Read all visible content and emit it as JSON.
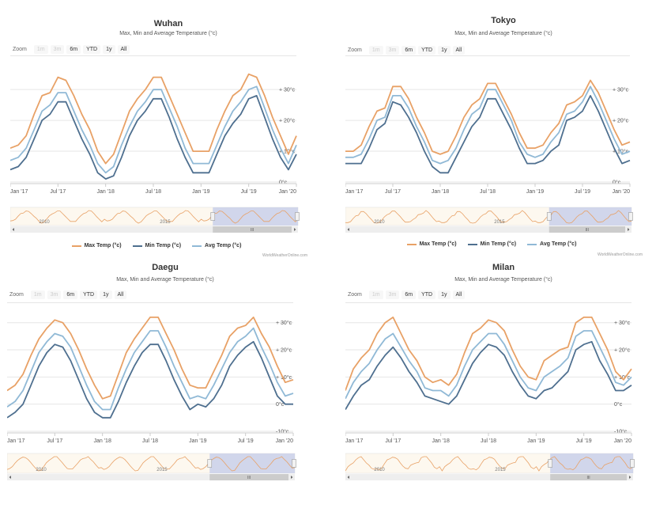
{
  "common": {
    "subtitle": "Max, Min and Average Temperature (°c)",
    "zoom": {
      "label": "Zoom",
      "buttons": [
        "1m",
        "3m",
        "6m",
        "YTD",
        "1y",
        "All"
      ],
      "disabled": [
        "1m",
        "3m"
      ]
    },
    "legend": [
      "Max Temp (°c)",
      "Min Temp (°c)",
      "Avg Temp (°c)"
    ],
    "credit": "WorldWeatherOnline.com",
    "x_ticks": [
      "Jan '17",
      "Jul '17",
      "Jan '18",
      "Jul '18",
      "Jan '19",
      "Jul '19",
      "Jan '20"
    ],
    "navigator_labels": [
      "2010",
      "2015"
    ],
    "scrollbar_grip": "III",
    "colors": {
      "max": "#e8a166",
      "min": "#4e6f8f",
      "avg": "#90b9d6",
      "grid": "#e6e6e6",
      "nav": "#c9d0ea"
    }
  },
  "chart_data": [
    {
      "type": "line",
      "title": "Wuhan",
      "x": [
        "2017-01",
        "2017-02",
        "2017-03",
        "2017-04",
        "2017-05",
        "2017-06",
        "2017-07",
        "2017-08",
        "2017-09",
        "2017-10",
        "2017-11",
        "2017-12",
        "2018-01",
        "2018-02",
        "2018-03",
        "2018-04",
        "2018-05",
        "2018-06",
        "2018-07",
        "2018-08",
        "2018-09",
        "2018-10",
        "2018-11",
        "2018-12",
        "2019-01",
        "2019-02",
        "2019-03",
        "2019-04",
        "2019-05",
        "2019-06",
        "2019-07",
        "2019-08",
        "2019-09",
        "2019-10",
        "2019-11",
        "2019-12",
        "2020-01"
      ],
      "series": [
        {
          "name": "Max Temp (°c)",
          "values": [
            11,
            12,
            15,
            22,
            28,
            29,
            34,
            33,
            28,
            22,
            17,
            10,
            6,
            9,
            16,
            23,
            27,
            30,
            34,
            34,
            28,
            22,
            16,
            10,
            10,
            10,
            17,
            23,
            28,
            30,
            35,
            34,
            28,
            21,
            15,
            9,
            15
          ]
        },
        {
          "name": "Min Temp (°c)",
          "values": [
            4,
            5,
            8,
            14,
            20,
            22,
            26,
            26,
            20,
            14,
            9,
            3,
            1,
            2,
            8,
            15,
            20,
            23,
            27,
            27,
            21,
            14,
            8,
            3,
            3,
            3,
            9,
            15,
            19,
            22,
            27,
            28,
            21,
            14,
            8,
            4,
            9
          ]
        },
        {
          "name": "Avg Temp (°c)",
          "values": [
            7,
            8,
            11,
            17,
            23,
            25,
            29,
            29,
            23,
            17,
            12,
            6,
            3,
            5,
            12,
            18,
            23,
            26,
            30,
            30,
            24,
            18,
            11,
            6,
            6,
            6,
            12,
            18,
            23,
            26,
            30,
            31,
            24,
            17,
            11,
            6,
            12
          ]
        }
      ],
      "y_ticks": [
        "+ 30°c",
        "+ 20°c",
        "+ 10°c",
        "0°c"
      ],
      "ylim": [
        0,
        38
      ]
    },
    {
      "type": "line",
      "title": "Tokyo",
      "x": [
        "2017-01",
        "2017-02",
        "2017-03",
        "2017-04",
        "2017-05",
        "2017-06",
        "2017-07",
        "2017-08",
        "2017-09",
        "2017-10",
        "2017-11",
        "2017-12",
        "2018-01",
        "2018-02",
        "2018-03",
        "2018-04",
        "2018-05",
        "2018-06",
        "2018-07",
        "2018-08",
        "2018-09",
        "2018-10",
        "2018-11",
        "2018-12",
        "2019-01",
        "2019-02",
        "2019-03",
        "2019-04",
        "2019-05",
        "2019-06",
        "2019-07",
        "2019-08",
        "2019-09",
        "2019-10",
        "2019-11",
        "2019-12",
        "2020-01"
      ],
      "series": [
        {
          "name": "Max Temp (°c)",
          "values": [
            10,
            10,
            12,
            18,
            23,
            24,
            31,
            31,
            27,
            21,
            16,
            10,
            9,
            10,
            15,
            21,
            25,
            27,
            32,
            32,
            27,
            22,
            16,
            11,
            11,
            12,
            16,
            19,
            25,
            26,
            28,
            33,
            29,
            23,
            17,
            12,
            13
          ]
        },
        {
          "name": "Min Temp (°c)",
          "values": [
            6,
            6,
            6,
            11,
            17,
            19,
            26,
            25,
            21,
            16,
            10,
            5,
            3,
            3,
            8,
            13,
            18,
            21,
            27,
            27,
            22,
            17,
            11,
            6,
            6,
            7,
            10,
            12,
            20,
            21,
            23,
            28,
            23,
            17,
            11,
            6,
            7
          ]
        },
        {
          "name": "Avg Temp (°c)",
          "values": [
            8,
            8,
            9,
            14,
            20,
            21,
            28,
            28,
            24,
            18,
            13,
            7,
            6,
            7,
            11,
            17,
            22,
            24,
            30,
            30,
            25,
            20,
            13,
            9,
            8,
            9,
            13,
            16,
            22,
            23,
            26,
            31,
            26,
            20,
            14,
            9,
            10
          ]
        }
      ],
      "y_ticks": [
        "+ 30°c",
        "+ 20°c",
        "+ 10°c",
        "0°c"
      ],
      "ylim": [
        0,
        38
      ]
    },
    {
      "type": "line",
      "title": "Daegu",
      "x": [
        "2017-01",
        "2017-02",
        "2017-03",
        "2017-04",
        "2017-05",
        "2017-06",
        "2017-07",
        "2017-08",
        "2017-09",
        "2017-10",
        "2017-11",
        "2017-12",
        "2018-01",
        "2018-02",
        "2018-03",
        "2018-04",
        "2018-05",
        "2018-06",
        "2018-07",
        "2018-08",
        "2018-09",
        "2018-10",
        "2018-11",
        "2018-12",
        "2019-01",
        "2019-02",
        "2019-03",
        "2019-04",
        "2019-05",
        "2019-06",
        "2019-07",
        "2019-08",
        "2019-09",
        "2019-10",
        "2019-11",
        "2019-12",
        "2020-01"
      ],
      "series": [
        {
          "name": "Max Temp (°c)",
          "values": [
            5,
            7,
            11,
            18,
            24,
            28,
            31,
            30,
            26,
            20,
            13,
            7,
            2,
            3,
            11,
            19,
            24,
            28,
            32,
            32,
            26,
            20,
            13,
            7,
            6,
            6,
            12,
            18,
            25,
            28,
            29,
            32,
            26,
            21,
            14,
            8,
            9
          ]
        },
        {
          "name": "Min Temp (°c)",
          "values": [
            -5,
            -3,
            0,
            7,
            14,
            19,
            22,
            21,
            16,
            9,
            2,
            -3,
            -5,
            -5,
            1,
            8,
            14,
            19,
            22,
            22,
            16,
            9,
            3,
            -2,
            0,
            -1,
            2,
            7,
            14,
            18,
            21,
            23,
            17,
            10,
            3,
            0,
            0
          ]
        },
        {
          "name": "Avg Temp (°c)",
          "values": [
            -1,
            1,
            5,
            12,
            19,
            23,
            26,
            25,
            21,
            14,
            7,
            1,
            -2,
            -2,
            6,
            13,
            19,
            23,
            27,
            27,
            21,
            14,
            8,
            2,
            3,
            2,
            7,
            13,
            19,
            23,
            25,
            28,
            21,
            15,
            8,
            3,
            4
          ]
        }
      ],
      "y_ticks": [
        "+ 30°c",
        "+ 20°c",
        "+ 10°c",
        "0°c",
        "-10°c"
      ],
      "ylim": [
        -10,
        34
      ]
    },
    {
      "type": "line",
      "title": "Milan",
      "x": [
        "2017-01",
        "2017-02",
        "2017-03",
        "2017-04",
        "2017-05",
        "2017-06",
        "2017-07",
        "2017-08",
        "2017-09",
        "2017-10",
        "2017-11",
        "2017-12",
        "2018-01",
        "2018-02",
        "2018-03",
        "2018-04",
        "2018-05",
        "2018-06",
        "2018-07",
        "2018-08",
        "2018-09",
        "2018-10",
        "2018-11",
        "2018-12",
        "2019-01",
        "2019-02",
        "2019-03",
        "2019-04",
        "2019-05",
        "2019-06",
        "2019-07",
        "2019-08",
        "2019-09",
        "2019-10",
        "2019-11",
        "2019-12",
        "2020-01"
      ],
      "series": [
        {
          "name": "Max Temp (°c)",
          "values": [
            5,
            13,
            17,
            20,
            26,
            30,
            32,
            26,
            20,
            16,
            10,
            8,
            9,
            7,
            11,
            19,
            26,
            28,
            31,
            30,
            27,
            20,
            14,
            10,
            9,
            16,
            18,
            20,
            21,
            30,
            32,
            32,
            26,
            20,
            12,
            9,
            13
          ]
        },
        {
          "name": "Min Temp (°c)",
          "values": [
            -2,
            3,
            7,
            9,
            14,
            18,
            21,
            17,
            12,
            8,
            3,
            2,
            1,
            0,
            3,
            9,
            15,
            19,
            22,
            21,
            18,
            12,
            7,
            3,
            2,
            5,
            6,
            9,
            12,
            20,
            22,
            23,
            16,
            11,
            5,
            5,
            7
          ]
        },
        {
          "name": "Avg Temp (°c)",
          "values": [
            2,
            8,
            12,
            15,
            20,
            24,
            26,
            21,
            16,
            12,
            6,
            5,
            5,
            3,
            7,
            14,
            20,
            23,
            26,
            26,
            22,
            16,
            10,
            6,
            5,
            10,
            12,
            14,
            17,
            25,
            27,
            27,
            21,
            15,
            8,
            7,
            10
          ]
        }
      ],
      "y_ticks": [
        "+ 30°c",
        "+ 20°c",
        "+ 10°c",
        "0°c",
        "-10°c"
      ],
      "ylim": [
        -10,
        34
      ]
    }
  ]
}
